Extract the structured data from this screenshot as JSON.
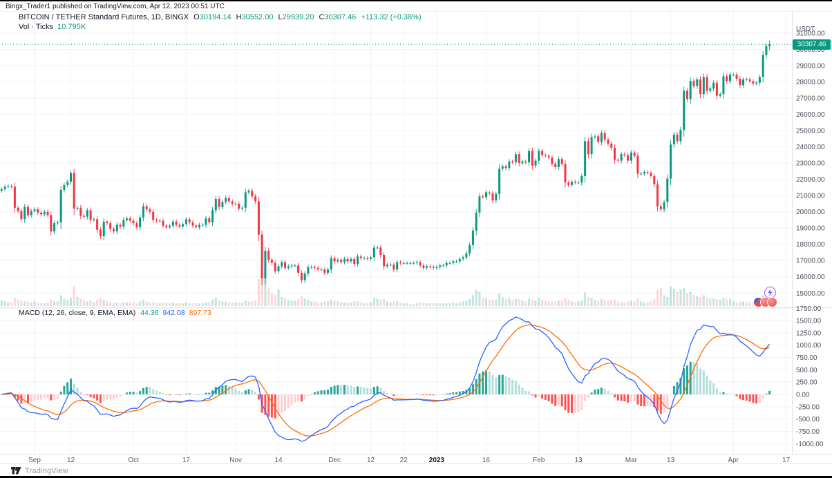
{
  "page": {
    "published_line": "Bingx_Trader1 published on TradingView.com, Apr 12, 2023 00:51 UTC"
  },
  "chart": {
    "symbol_line": "BITCOIN / TETHER Standard Futures, 1D, BINGX",
    "ohlc": {
      "o": {
        "k": "O",
        "v": "30194.14"
      },
      "h": {
        "k": "H",
        "v": "30552.00"
      },
      "l": {
        "k": "L",
        "v": "29939.20"
      },
      "c": {
        "k": "C",
        "v": "30307.46"
      },
      "chg": "+113.32 (+0.38%)"
    },
    "volume_label": "Vol · Ticks",
    "volume_value": "10.795K",
    "price_axis_currency": "USDT",
    "current_price_label": "30307.46",
    "macd_legend": {
      "title": "MACD (12, 26, close, 9, EMA, EMA)",
      "hist": "44.36",
      "macd": "942.08",
      "signal": "897.73"
    }
  },
  "footer": {
    "brand": "TradingView"
  },
  "colors": {
    "up": "#089981",
    "down": "#F23645",
    "vol_up": "rgba(8,153,129,0.25)",
    "vol_down": "rgba(242,54,69,0.20)",
    "macd_line": "#2962FF",
    "signal_line": "#FF6D00",
    "hist_grow_above": "#26A69A",
    "hist_fall_above": "#B2DFDB",
    "hist_fall_below": "#FF5252",
    "hist_grow_below": "#FFCDD2",
    "grid": "#f0f2f6",
    "sep": "#e0e3eb",
    "axis_text": "#4a4e59",
    "time_text": "#555a64",
    "time_text_bold": "#131722",
    "price_line": "#089981"
  },
  "chart_data": {
    "type": "candlestick+volume+macd",
    "title": "BITCOIN / TETHER Standard Futures, 1D, BINGX",
    "interval": "1D",
    "start_date": "2022-08-22",
    "end_date": "2023-04-12",
    "currency": "USDT",
    "price_axis_ticks": [
      31000,
      30000,
      29000,
      28000,
      27000,
      26000,
      25000,
      24000,
      23000,
      22000,
      21000,
      20000,
      19000,
      18000,
      17000,
      16000,
      15000
    ],
    "macd_axis_ticks": [
      1750,
      1500,
      1250,
      1000,
      750,
      500,
      250,
      0,
      -250,
      -500,
      -750,
      -1000
    ],
    "time_ticks": [
      {
        "label": "Sep",
        "day": 10
      },
      {
        "label": "12",
        "day": 21
      },
      {
        "label": "Oct",
        "day": 40
      },
      {
        "label": "17",
        "day": 56
      },
      {
        "label": "Nov",
        "day": 71
      },
      {
        "label": "14",
        "day": 84
      },
      {
        "label": "Dec",
        "day": 101
      },
      {
        "label": "12",
        "day": 112
      },
      {
        "label": "22",
        "day": 122
      },
      {
        "label": "2023",
        "day": 132,
        "b": 1
      },
      {
        "label": "16",
        "day": 147
      },
      {
        "label": "Feb",
        "day": 163
      },
      {
        "label": "13",
        "day": 175
      },
      {
        "label": "Mar",
        "day": 191
      },
      {
        "label": "13",
        "day": 203
      },
      {
        "label": "Apr",
        "day": 222
      },
      {
        "label": "17",
        "day": 238
      }
    ],
    "first_open": 21300,
    "last_candle_ohlc": [
      30194.14,
      30552.0,
      29939.2,
      30307.46
    ],
    "current_price": 30307.46,
    "macd_params": {
      "fast": 12,
      "slow": 26,
      "source": "close",
      "signal": 9,
      "ma_type": "EMA"
    },
    "macd_last": {
      "hist": 44.36,
      "macd": 942.08,
      "signal": 897.73
    },
    "closes": [
      21400,
      21550,
      21600,
      21550,
      20250,
      20050,
      19550,
      20300,
      19800,
      20050,
      20150,
      19950,
      19850,
      20000,
      19800,
      18800,
      19300,
      19350,
      21350,
      21650,
      21850,
      22400,
      20200,
      20250,
      19750,
      19700,
      20100,
      19500,
      19550,
      18900,
      18500,
      19400,
      19300,
      18950,
      18800,
      19200,
      19100,
      19500,
      19600,
      19450,
      19300,
      19050,
      19650,
      20350,
      20150,
      20000,
      19500,
      19450,
      19450,
      19150,
      19050,
      19150,
      19400,
      19200,
      19100,
      19250,
      19550,
      19350,
      19150,
      19050,
      19200,
      19200,
      19600,
      19350,
      20100,
      20800,
      20300,
      20600,
      20850,
      20650,
      20500,
      20500,
      20200,
      20250,
      21200,
      21300,
      20950,
      20650,
      18600,
      15900,
      17600,
      17050,
      16850,
      16350,
      16650,
      16900,
      16550,
      16650,
      16700,
      16700,
      16250,
      15800,
      16200,
      16600,
      16600,
      16550,
      16450,
      16450,
      16250,
      16450,
      17150,
      16950,
      17050,
      16900,
      17100,
      16950,
      17100,
      16800,
      17250,
      17150,
      17150,
      17100,
      17200,
      17800,
      17800,
      17350,
      16650,
      16750,
      16750,
      16450,
      16900,
      16850,
      16850,
      16850,
      16850,
      16850,
      16900,
      16700,
      16550,
      16650,
      16600,
      16550,
      16600,
      16700,
      16700,
      16850,
      16850,
      16950,
      16950,
      17100,
      17200,
      17450,
      17950,
      18850,
      19950,
      20950,
      20900,
      21200,
      21150,
      20700,
      21100,
      22650,
      22800,
      22700,
      23100,
      23050,
      23550,
      23000,
      23100,
      23050,
      23750,
      22850,
      23150,
      23750,
      23500,
      23450,
      23350,
      22950,
      22750,
      23250,
      22950,
      21800,
      21650,
      21850,
      21800,
      21800,
      22200,
      24350,
      23550,
      24600,
      24650,
      24300,
      24850,
      24450,
      24200,
      23950,
      23200,
      23150,
      23550,
      23500,
      23150,
      23650,
      23450,
      22350,
      22350,
      22450,
      22400,
      22200,
      21700,
      20350,
      20150,
      20600,
      22050,
      24150,
      24750,
      24350,
      25050,
      27450,
      26950,
      28050,
      27750,
      28150,
      27250,
      28300,
      27450,
      27600,
      27950,
      27150,
      27250,
      28350,
      28050,
      28450,
      28450,
      28200,
      27800,
      28150,
      28150,
      28050,
      27900,
      27950,
      28300,
      29650,
      30200,
      30307.46
    ],
    "volumes_k": [
      6,
      5,
      4,
      4,
      9,
      7,
      6,
      5,
      5,
      4,
      5,
      4,
      3,
      3,
      4,
      7,
      5,
      5,
      12,
      8,
      7,
      9,
      22,
      10,
      8,
      6,
      5,
      6,
      4,
      7,
      9,
      7,
      5,
      4,
      4,
      4,
      3,
      4,
      4,
      4,
      4,
      3,
      5,
      7,
      5,
      4,
      4,
      3,
      3,
      4,
      4,
      3,
      4,
      3,
      3,
      3,
      4,
      3,
      3,
      3,
      3,
      3,
      4,
      4,
      7,
      9,
      6,
      5,
      5,
      4,
      4,
      4,
      4,
      4,
      6,
      5,
      5,
      6,
      30,
      42,
      35,
      20,
      14,
      12,
      18,
      10,
      9,
      7,
      6,
      6,
      8,
      11,
      8,
      7,
      5,
      5,
      4,
      4,
      5,
      5,
      7,
      6,
      5,
      4,
      4,
      4,
      4,
      5,
      5,
      4,
      3,
      3,
      4,
      9,
      8,
      7,
      8,
      5,
      4,
      5,
      5,
      4,
      3,
      3,
      2,
      2,
      3,
      4,
      4,
      3,
      3,
      3,
      3,
      3,
      3,
      3,
      3,
      4,
      3,
      4,
      5,
      6,
      8,
      12,
      18,
      16,
      9,
      8,
      7,
      7,
      7,
      14,
      10,
      8,
      9,
      7,
      8,
      8,
      6,
      5,
      8,
      7,
      6,
      9,
      7,
      6,
      5,
      5,
      5,
      6,
      6,
      9,
      7,
      5,
      4,
      5,
      6,
      15,
      10,
      9,
      7,
      6,
      8,
      7,
      6,
      6,
      7,
      5,
      4,
      4,
      5,
      6,
      5,
      8,
      5,
      4,
      4,
      5,
      8,
      18,
      20,
      12,
      10,
      22,
      19,
      16,
      18,
      20,
      14,
      16,
      12,
      11,
      10,
      12,
      9,
      8,
      8,
      7,
      7,
      9,
      8,
      8,
      5,
      4,
      5,
      5,
      4,
      4,
      4,
      3,
      5,
      12,
      14,
      10.795
    ]
  }
}
